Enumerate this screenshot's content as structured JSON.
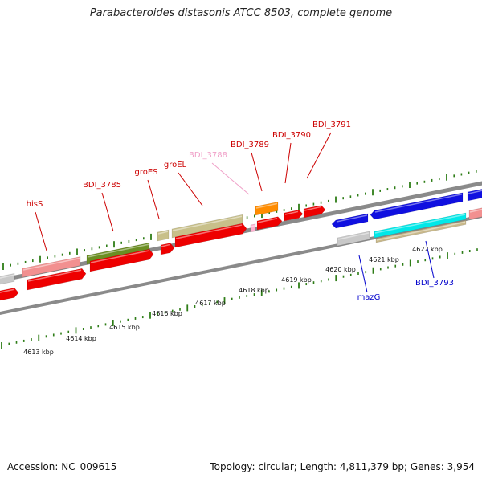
{
  "title": "Parabacteroides distasonis ATCC 8503, complete genome",
  "footer": {
    "accession": "Accession: NC_009615",
    "summary": "Topology: circular; Length: 4,811,379 bp; Genes: 3,954"
  },
  "colors": {
    "tick_green": "#2e7d17",
    "axis_grey": "#8a8a8a",
    "label_red": "#cc0000",
    "label_pink": "#f0a0c8",
    "label_blue": "#0000cc",
    "gene_red": "#ee0000",
    "gene_pink": "#f29090",
    "gene_olive": "#6b8e23",
    "gene_khaki": "#c8c08a",
    "gene_orange": "#ff8c00",
    "gene_grey": "#c8c8c8",
    "gene_blue": "#1010e0",
    "gene_cyan": "#00e8e8",
    "gene_tan": "#c8b88a",
    "gene_lightpink": "#ffb0d0"
  },
  "kbp_labels": [
    "4613 kbp",
    "4614 kbp",
    "4615 kbp",
    "4616 kbp",
    "4617 kbp",
    "4618 kbp",
    "4619 kbp",
    "4620 kbp",
    "4621 kbp",
    "4622 kbp"
  ],
  "gene_labels": [
    "hisS",
    "BDI_3785",
    "groES",
    "groEL",
    "BDI_3788",
    "BDI_3789",
    "BDI_3790",
    "BDI_3791",
    "mazG",
    "BDI_3793"
  ]
}
